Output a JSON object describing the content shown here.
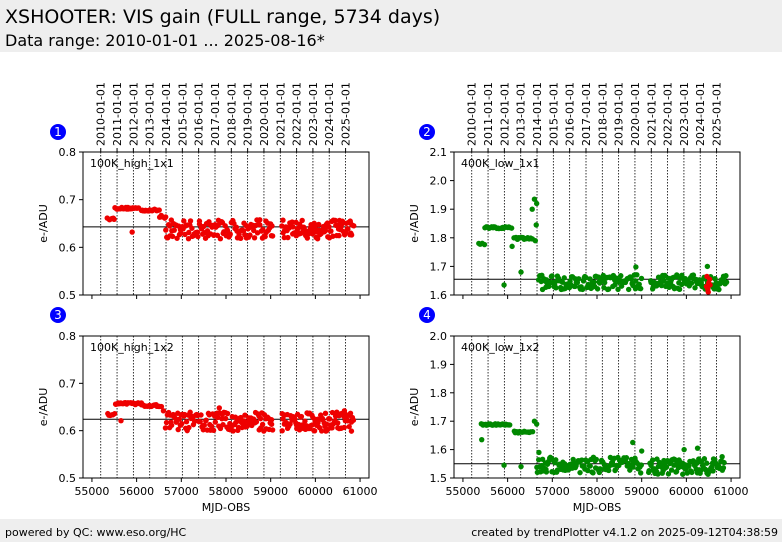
{
  "header": {
    "title": "XSHOOTER: VIS gain (FULL range, 5734 days)",
    "subtitle": "Data range: 2010-01-01 ... 2025-08-16*"
  },
  "footer": {
    "left": "powered by QC: www.eso.org/HC",
    "right": "created by trendPlotter v4.1.2 on 2025-09-12T04:38:59"
  },
  "colors": {
    "red": "#ee0000",
    "green": "#008800",
    "badge": "#0000ff"
  },
  "chart_data": [
    {
      "type": "scatter",
      "badge": "1",
      "label": "100K_high_1x1",
      "xlabel": "",
      "ylabel": "e-/ADU",
      "xlim": [
        54800,
        61200
      ],
      "ylim": [
        0.5,
        0.8
      ],
      "yticks": [
        0.5,
        0.6,
        0.7,
        0.8
      ],
      "yticklabels": [
        "0.5",
        "0.6",
        "0.7",
        "0.8"
      ],
      "xticks": [
        55000,
        56000,
        57000,
        58000,
        59000,
        60000,
        61000
      ],
      "xticklabels": [],
      "show_date_axis": true,
      "reference_line": 0.643,
      "series": [
        {
          "color": "red",
          "segments": [
            {
              "x0": 55350,
              "x1": 55500,
              "n": 6,
              "y": 0.66,
              "spread": 0.002
            },
            {
              "x0": 55520,
              "x1": 56050,
              "n": 24,
              "y": 0.682,
              "spread": 0.002
            },
            {
              "x0": 56100,
              "x1": 56500,
              "n": 16,
              "y": 0.678,
              "spread": 0.002
            },
            {
              "x0": 56520,
              "x1": 56660,
              "n": 5,
              "y": 0.664,
              "spread": 0.003
            },
            {
              "x0": 56650,
              "x1": 59050,
              "n": 120,
              "y": 0.638,
              "spread": 0.02
            },
            {
              "x0": 59250,
              "x1": 60850,
              "n": 95,
              "y": 0.638,
              "spread": 0.02
            }
          ],
          "points": [
            [
              55900,
              0.632
            ],
            [
              56550,
              0.667
            ],
            [
              60050,
              0.618
            ],
            [
              60780,
              0.655
            ]
          ]
        }
      ]
    },
    {
      "type": "scatter",
      "badge": "2",
      "label": "400K_low_1x1",
      "xlabel": "",
      "ylabel": "e-/ADU",
      "xlim": [
        54800,
        61200
      ],
      "ylim": [
        1.6,
        2.1
      ],
      "yticks": [
        1.6,
        1.7,
        1.8,
        1.9,
        2.0,
        2.1
      ],
      "yticklabels": [
        "1.6",
        "1.7",
        "1.8",
        "1.9",
        "2.0",
        "2.1"
      ],
      "xticks": [
        55000,
        56000,
        57000,
        58000,
        59000,
        60000,
        61000
      ],
      "xticklabels": [],
      "show_date_axis": true,
      "reference_line": 1.655,
      "series": [
        {
          "color": "green",
          "segments": [
            {
              "x0": 55350,
              "x1": 55480,
              "n": 4,
              "y": 1.778,
              "spread": 0.003
            },
            {
              "x0": 55500,
              "x1": 56080,
              "n": 22,
              "y": 1.835,
              "spread": 0.004
            },
            {
              "x0": 56150,
              "x1": 56550,
              "n": 14,
              "y": 1.798,
              "spread": 0.004
            },
            {
              "x0": 56700,
              "x1": 59000,
              "n": 110,
              "y": 1.645,
              "spread": 0.026
            },
            {
              "x0": 59200,
              "x1": 60900,
              "n": 90,
              "y": 1.645,
              "spread": 0.026
            }
          ],
          "points": [
            [
              55920,
              1.635
            ],
            [
              56100,
              1.77
            ],
            [
              56300,
              1.68
            ],
            [
              56550,
              1.9
            ],
            [
              56600,
              1.935
            ],
            [
              56650,
              1.92
            ],
            [
              56640,
              1.845
            ],
            [
              56620,
              1.79
            ],
            [
              58870,
              1.698
            ],
            [
              60470,
              1.7
            ],
            [
              60400,
              1.662
            ]
          ]
        },
        {
          "color": "red",
          "segments": [],
          "points": [
            [
              60450,
              1.63
            ],
            [
              60480,
              1.62
            ],
            [
              60500,
              1.642
            ],
            [
              60460,
              1.665
            ],
            [
              60520,
              1.655
            ],
            [
              60490,
              1.61
            ],
            [
              60530,
              1.635
            ]
          ]
        }
      ]
    },
    {
      "type": "scatter",
      "badge": "3",
      "label": "100K_high_1x2",
      "xlabel": "MJD-OBS",
      "ylabel": "e-/ADU",
      "xlim": [
        54800,
        61200
      ],
      "ylim": [
        0.5,
        0.8
      ],
      "yticks": [
        0.5,
        0.6,
        0.7,
        0.8
      ],
      "yticklabels": [
        "0.5",
        "0.6",
        "0.7",
        "0.8"
      ],
      "xticks": [
        55000,
        56000,
        57000,
        58000,
        59000,
        60000,
        61000
      ],
      "xticklabels": [
        "55000",
        "56000",
        "57000",
        "58000",
        "59000",
        "60000",
        "61000"
      ],
      "show_date_axis": false,
      "reference_line": 0.624,
      "series": [
        {
          "color": "red",
          "segments": [
            {
              "x0": 55350,
              "x1": 55500,
              "n": 6,
              "y": 0.634,
              "spread": 0.002
            },
            {
              "x0": 55520,
              "x1": 56100,
              "n": 24,
              "y": 0.657,
              "spread": 0.002
            },
            {
              "x0": 56100,
              "x1": 56550,
              "n": 16,
              "y": 0.653,
              "spread": 0.002
            },
            {
              "x0": 56650,
              "x1": 59050,
              "n": 120,
              "y": 0.619,
              "spread": 0.02
            },
            {
              "x0": 59250,
              "x1": 60850,
              "n": 95,
              "y": 0.619,
              "spread": 0.02
            }
          ],
          "points": [
            [
              55650,
              0.621
            ],
            [
              56600,
              0.642
            ],
            [
              57850,
              0.648
            ],
            [
              60250,
              0.6
            ],
            [
              60650,
              0.642
            ]
          ]
        }
      ]
    },
    {
      "type": "scatter",
      "badge": "4",
      "label": "400K_low_1x2",
      "xlabel": "MJD-OBS",
      "ylabel": "e-/ADU",
      "xlim": [
        54800,
        61200
      ],
      "ylim": [
        1.5,
        2.0
      ],
      "yticks": [
        1.5,
        1.6,
        1.7,
        1.8,
        1.9,
        2.0
      ],
      "yticklabels": [
        "1.5",
        "1.6",
        "1.7",
        "1.8",
        "1.9",
        "2.0"
      ],
      "xticks": [
        55000,
        56000,
        57000,
        58000,
        59000,
        60000,
        61000
      ],
      "xticklabels": [
        "55000",
        "56000",
        "57000",
        "58000",
        "59000",
        "60000",
        "61000"
      ],
      "show_date_axis": false,
      "reference_line": 1.55,
      "series": [
        {
          "color": "green",
          "segments": [
            {
              "x0": 55420,
              "x1": 56050,
              "n": 24,
              "y": 1.688,
              "spread": 0.003
            },
            {
              "x0": 56150,
              "x1": 56550,
              "n": 14,
              "y": 1.662,
              "spread": 0.004
            },
            {
              "x0": 56650,
              "x1": 59000,
              "n": 115,
              "y": 1.545,
              "spread": 0.028
            },
            {
              "x0": 59150,
              "x1": 60850,
              "n": 95,
              "y": 1.54,
              "spread": 0.028
            }
          ],
          "points": [
            [
              55420,
              1.635
            ],
            [
              55920,
              1.545
            ],
            [
              56300,
              1.54
            ],
            [
              56600,
              1.7
            ],
            [
              56650,
              1.69
            ],
            [
              56700,
              1.59
            ],
            [
              58800,
              1.625
            ],
            [
              59000,
              1.595
            ],
            [
              59950,
              1.6
            ],
            [
              60250,
              1.605
            ],
            [
              60800,
              1.575
            ]
          ]
        }
      ]
    }
  ],
  "date_axis": {
    "labels": [
      "2010-01-01",
      "2011-01-01",
      "2012-01-01",
      "2013-01-01",
      "2014-01-01",
      "2015-01-01",
      "2016-01-01",
      "2017-01-01",
      "2018-01-01",
      "2019-01-01",
      "2020-01-01",
      "2021-01-01",
      "2022-01-01",
      "2023-01-01",
      "2024-01-01",
      "2025-01-01"
    ],
    "mjd": [
      55197,
      55562,
      55927,
      56293,
      56658,
      57023,
      57388,
      57754,
      58119,
      58484,
      58849,
      59215,
      59580,
      59945,
      60310,
      60676
    ]
  }
}
